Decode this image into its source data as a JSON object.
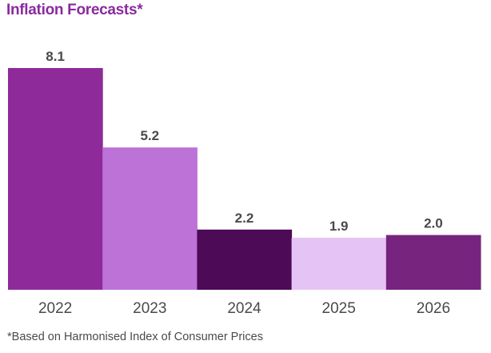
{
  "title": "Inflation Forecasts*",
  "footnote": "*Based on Harmonised Index of Consumer Prices",
  "colors": {
    "title": "#8a2a9e",
    "value_label": "#4a4a4a",
    "tick_label": "#4a4a4a",
    "baseline": "#c8c8c8"
  },
  "chart_data": {
    "type": "bar",
    "title": "Inflation Forecasts*",
    "xlabel": "",
    "ylabel": "",
    "categories": [
      "2022",
      "2023",
      "2024",
      "2025",
      "2026"
    ],
    "values": [
      8.1,
      5.2,
      2.2,
      1.9,
      2.0
    ],
    "value_labels": [
      "8.1",
      "5.2",
      "2.2",
      "1.9",
      "2.0"
    ],
    "bar_colors": [
      "#8e2a9a",
      "#bd72d8",
      "#4c0a57",
      "#e6c3f5",
      "#76247e"
    ],
    "ylim": [
      0,
      8.1
    ],
    "grid": false,
    "legend": "none",
    "annotations": [
      "*Based on Harmonised Index of Consumer Prices"
    ]
  }
}
